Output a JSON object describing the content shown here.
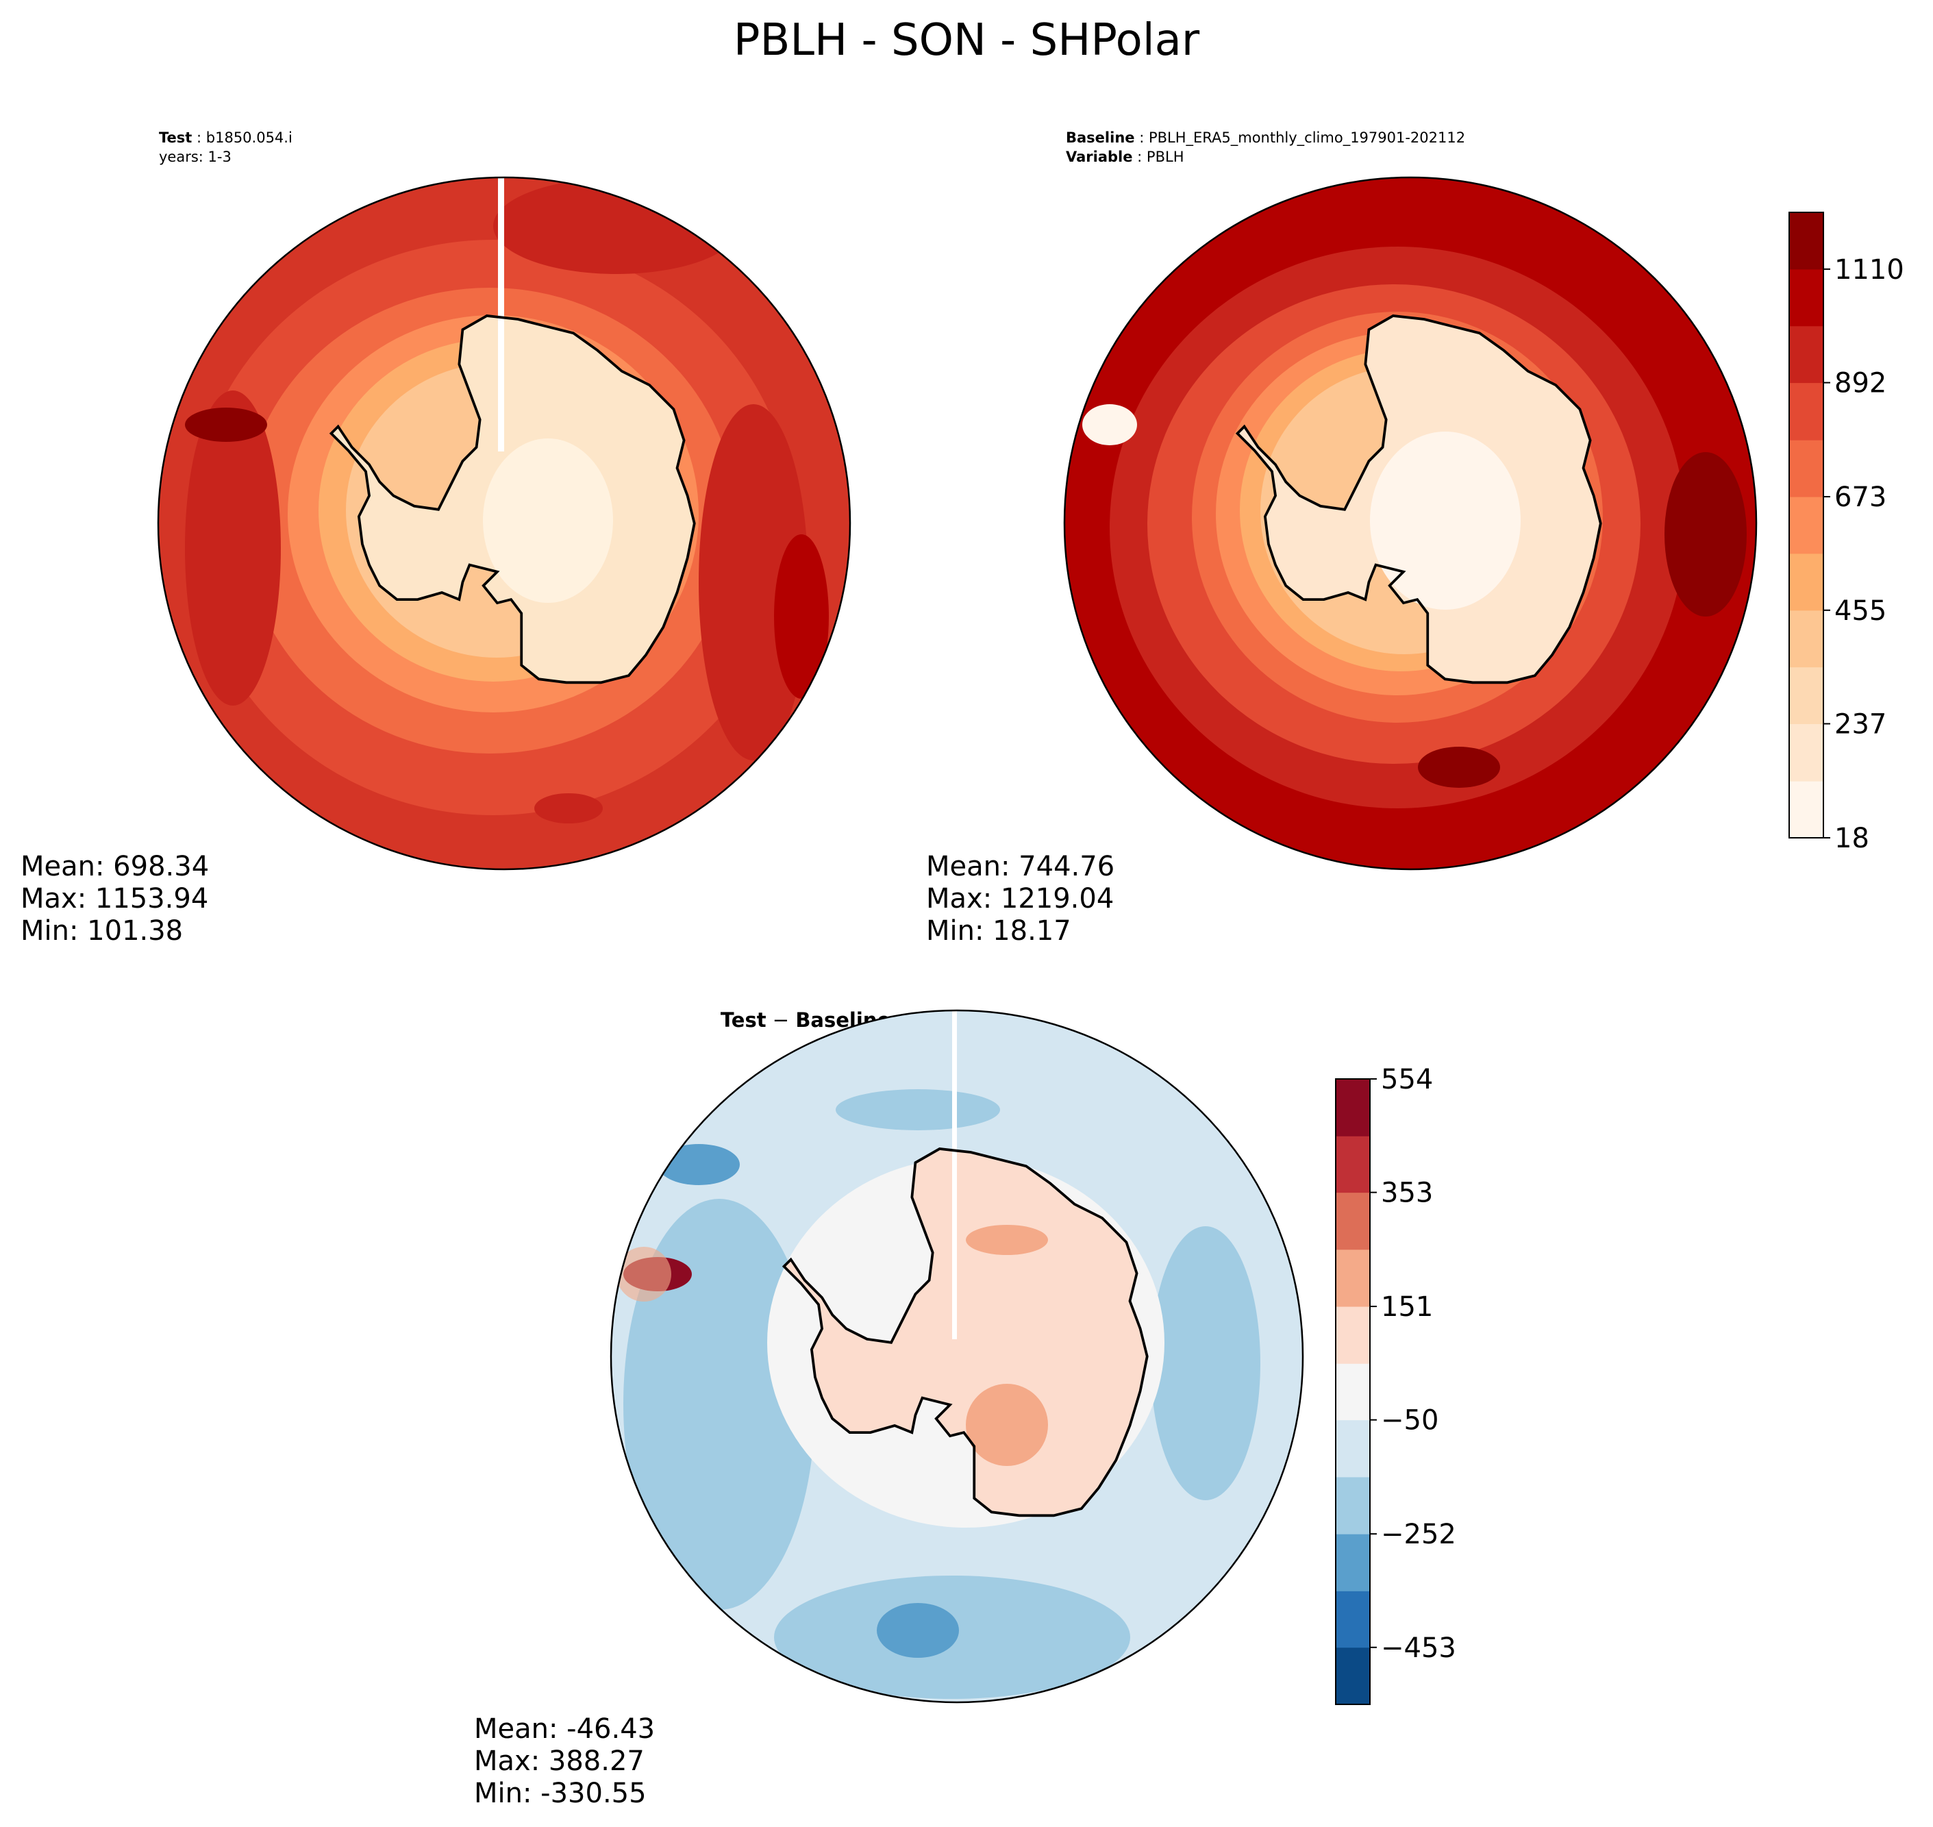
{
  "title": "PBLH - SON - SHPolar",
  "panels": {
    "test": {
      "label_key": "Test",
      "label_value": "b1850.054.i",
      "years": "years: 1-3",
      "stats": {
        "mean": "Mean: 698.34",
        "max": "Max: 1153.94",
        "min": "Min: 101.38"
      }
    },
    "baseline": {
      "label_key": "Baseline",
      "label_value": "PBLH_ERA5_monthly_climo_197901-202112",
      "variable_key": "Variable",
      "variable_value": "PBLH",
      "stats": {
        "mean": "Mean: 744.76",
        "max": "Max: 1219.04",
        "min": "Min: 18.17"
      }
    },
    "diff": {
      "title_left": "Test",
      "title_op": " − ",
      "title_right": "Baseline",
      "stats": {
        "mean": "Mean: -46.43",
        "max": "Max: 388.27",
        "min": "Min: -330.55"
      }
    }
  },
  "colors": {
    "coast": "#000000",
    "ocean_test": "#e34a33",
    "ocean_base": "#c8241c",
    "ocean_diff": "#d1e5f0"
  },
  "chart_data": [
    {
      "type": "heatmap",
      "name": "test",
      "projection": "south-polar-stereographic",
      "mean": 698.34,
      "max": 1153.94,
      "min": 101.38,
      "shares_colorbar_with": "baseline"
    },
    {
      "type": "heatmap",
      "name": "baseline",
      "projection": "south-polar-stereographic",
      "mean": 744.76,
      "max": 1219.04,
      "min": 18.17,
      "colorbar": {
        "range": [
          18,
          1219
        ],
        "ticks": [
          18,
          237,
          455,
          673,
          892,
          1110
        ],
        "tick_labels": [
          "18",
          "237",
          "455",
          "673",
          "892",
          "1110"
        ],
        "levels": [
          18,
          127,
          237,
          346,
          455,
          564,
          673,
          782,
          892,
          1001,
          1110,
          1219
        ],
        "colors": [
          "#fff5eb",
          "#fee6ce",
          "#fdd9b3",
          "#fdc692",
          "#fdae6b",
          "#fc8d59",
          "#f26b44",
          "#e34a33",
          "#c8241c",
          "#b30000",
          "#8b0000"
        ]
      }
    },
    {
      "type": "heatmap",
      "name": "difference",
      "projection": "south-polar-stereographic",
      "mean": -46.43,
      "max": 388.27,
      "min": -330.55,
      "colorbar": {
        "range": [
          -554,
          554
        ],
        "ticks": [
          -453,
          -252,
          -50,
          151,
          353,
          554
        ],
        "tick_labels": [
          "−453",
          "−252",
          "−50",
          "151",
          "353",
          "554"
        ],
        "levels": [
          -554,
          -453,
          -353,
          -252,
          -151,
          -50,
          50,
          151,
          252,
          353,
          453,
          554
        ],
        "colors": [
          "#0b4a86",
          "#2771b5",
          "#5a9fcc",
          "#a1cce3",
          "#d4e6f1",
          "#f5f5f5",
          "#fcdccd",
          "#f4aa89",
          "#dd6e57",
          "#c03036",
          "#8c0a22"
        ]
      }
    }
  ]
}
